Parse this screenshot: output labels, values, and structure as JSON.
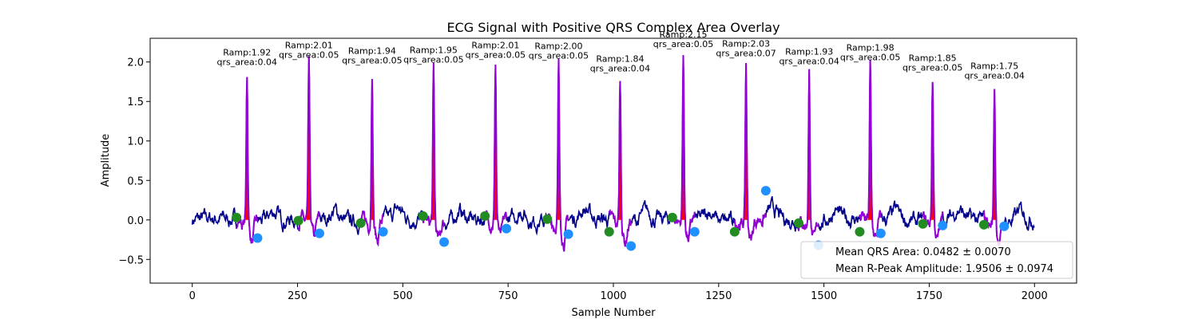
{
  "chart_data": {
    "type": "line",
    "title": "ECG Signal with Positive QRS Complex Area Overlay",
    "xlabel": "Sample Number",
    "ylabel": "Amplitude",
    "xlim": [
      -100,
      2100
    ],
    "ylim": [
      -0.8,
      2.3
    ],
    "x_ticks": [
      0,
      250,
      500,
      750,
      1000,
      1250,
      1500,
      1750,
      2000
    ],
    "y_ticks": [
      -0.5,
      0.0,
      0.5,
      1.0,
      1.5,
      2.0
    ],
    "grid": false,
    "colors": {
      "signal": "#00008b",
      "qrs_segment": "#9400d3",
      "area_fill": "#ff0000",
      "onset_marker": "#228b22",
      "offset_marker": "#1e90ff"
    },
    "beats": [
      {
        "r_sample": 130,
        "r_amp": 1.92,
        "qrs_area": 0.04,
        "onset": [
          105,
          0.03
        ],
        "offset": [
          155,
          -0.23
        ],
        "ramp_text": "Ramp:1.92",
        "area_text": "qrs_area:0.04"
      },
      {
        "r_sample": 277,
        "r_amp": 2.01,
        "qrs_area": 0.05,
        "onset": [
          252,
          -0.01
        ],
        "offset": [
          302,
          -0.17
        ],
        "ramp_text": "Ramp:2.01",
        "area_text": "qrs_area:0.05"
      },
      {
        "r_sample": 427,
        "r_amp": 1.94,
        "qrs_area": 0.05,
        "onset": [
          400,
          -0.04
        ],
        "offset": [
          453,
          -0.15
        ],
        "ramp_text": "Ramp:1.94",
        "area_text": "qrs_area:0.05"
      },
      {
        "r_sample": 573,
        "r_amp": 1.95,
        "qrs_area": 0.05,
        "onset": [
          548,
          0.05
        ],
        "offset": [
          598,
          -0.28
        ],
        "ramp_text": "Ramp:1.95",
        "area_text": "qrs_area:0.05"
      },
      {
        "r_sample": 720,
        "r_amp": 2.01,
        "qrs_area": 0.05,
        "onset": [
          695,
          0.05
        ],
        "offset": [
          746,
          -0.11
        ],
        "ramp_text": "Ramp:2.01",
        "area_text": "qrs_area:0.05"
      },
      {
        "r_sample": 870,
        "r_amp": 2.0,
        "qrs_area": 0.05,
        "onset": [
          843,
          0.01
        ],
        "offset": [
          893,
          -0.18
        ],
        "ramp_text": "Ramp:2.00",
        "area_text": "qrs_area:0.05"
      },
      {
        "r_sample": 1016,
        "r_amp": 1.84,
        "qrs_area": 0.04,
        "onset": [
          990,
          -0.15
        ],
        "offset": [
          1042,
          -0.33
        ],
        "ramp_text": "Ramp:1.84",
        "area_text": "qrs_area:0.04"
      },
      {
        "r_sample": 1166,
        "r_amp": 2.15,
        "qrs_area": 0.05,
        "onset": [
          1140,
          0.03
        ],
        "offset": [
          1193,
          -0.15
        ],
        "ramp_text": "Ramp:2.15",
        "area_text": "qrs_area:0.05"
      },
      {
        "r_sample": 1315,
        "r_amp": 2.03,
        "qrs_area": 0.07,
        "onset": [
          1288,
          -0.15
        ],
        "offset": [
          1362,
          0.37
        ],
        "ramp_text": "Ramp:2.03",
        "area_text": "qrs_area:0.07"
      },
      {
        "r_sample": 1465,
        "r_amp": 1.93,
        "qrs_area": 0.04,
        "onset": [
          1440,
          -0.04
        ],
        "offset": [
          1487,
          -0.32
        ],
        "ramp_text": "Ramp:1.93",
        "area_text": "qrs_area:0.04"
      },
      {
        "r_sample": 1610,
        "r_amp": 1.98,
        "qrs_area": 0.05,
        "onset": [
          1585,
          -0.15
        ],
        "offset": [
          1635,
          -0.17
        ],
        "ramp_text": "Ramp:1.98",
        "area_text": "qrs_area:0.05"
      },
      {
        "r_sample": 1758,
        "r_amp": 1.85,
        "qrs_area": 0.05,
        "onset": [
          1735,
          -0.05
        ],
        "offset": [
          1782,
          -0.07
        ],
        "ramp_text": "Ramp:1.85",
        "area_text": "qrs_area:0.05"
      },
      {
        "r_sample": 1905,
        "r_amp": 1.75,
        "qrs_area": 0.04,
        "onset": [
          1880,
          -0.06
        ],
        "offset": [
          1928,
          -0.08
        ],
        "ramp_text": "Ramp:1.75",
        "area_text": "qrs_area:0.04"
      }
    ],
    "legend": {
      "placement": "lower-right",
      "entries": [
        "Mean QRS Area: 0.0482 ± 0.0070",
        "Mean R-Peak Amplitude: 1.9506 ± 0.0974"
      ]
    }
  }
}
